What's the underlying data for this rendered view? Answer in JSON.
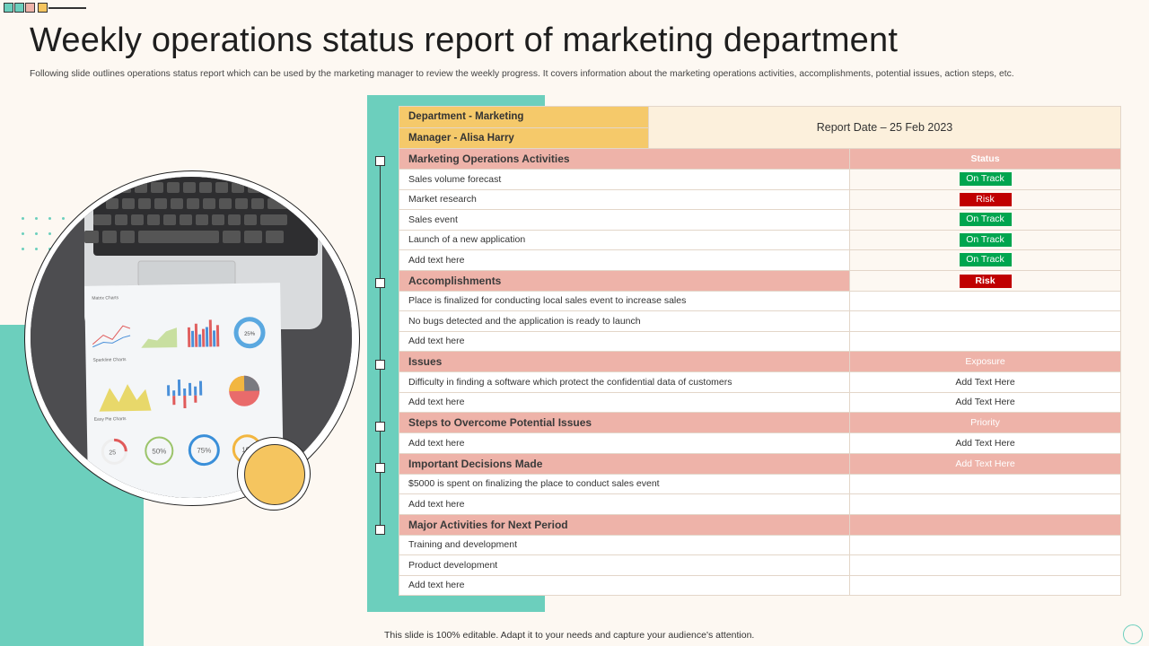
{
  "title": "Weekly operations status report of marketing department",
  "subtitle": "Following slide outlines operations status report which can be used by the marketing manager to review the weekly progress. It covers information about the marketing operations activities, accomplishments, potential issues, action steps, etc.",
  "footer": "This slide is 100% editable. Adapt it to your needs and capture your audience's attention.",
  "colors": {
    "teal": "#6ccfbd",
    "yellow": "#f5c96a",
    "section": "#eeb3a9",
    "on_track": "#00a54f",
    "risk": "#c00000"
  },
  "header": {
    "department": "Department - Marketing",
    "manager": "Manager - Alisa Harry",
    "report_date": "Report Date – 25 Feb 2023"
  },
  "sections": {
    "activities": {
      "title": "Marketing Operations Activities",
      "right": "Status",
      "rows": [
        {
          "text": "Sales volume forecast",
          "status": "On Track"
        },
        {
          "text": "Market research",
          "status": "Risk"
        },
        {
          "text": "Sales event",
          "status": "On Track"
        },
        {
          "text": "Launch of a new application",
          "status": "On Track"
        },
        {
          "text": "Add text here",
          "status": "On Track"
        }
      ]
    },
    "accomplishments": {
      "title": "Accomplishments",
      "status": "Risk",
      "rows": [
        {
          "text": "Place is finalized for conducting local sales event to increase sales"
        },
        {
          "text": "No bugs detected and the application is ready to launch"
        },
        {
          "text": "Add text here"
        }
      ]
    },
    "issues": {
      "title": "Issues",
      "right": "Exposure",
      "rows": [
        {
          "text": "Difficulty in finding a software which protect the confidential data of customers",
          "right": "Add Text Here"
        },
        {
          "text": "Add text here",
          "right": "Add Text Here"
        }
      ]
    },
    "steps": {
      "title": "Steps to Overcome Potential Issues",
      "right": "Priority",
      "rows": [
        {
          "text": "Add text here",
          "right": "Add Text Here"
        }
      ]
    },
    "decisions": {
      "title": "Important Decisions Made",
      "right": "Add Text Here",
      "rows": [
        {
          "text": "$5000 is spent on finalizing the place to conduct sales event"
        },
        {
          "text": "Add text here"
        }
      ]
    },
    "next": {
      "title": "Major Activities for Next Period",
      "rows": [
        {
          "text": "Training and development"
        },
        {
          "text": "Product development"
        },
        {
          "text": "Add text here"
        }
      ]
    }
  }
}
